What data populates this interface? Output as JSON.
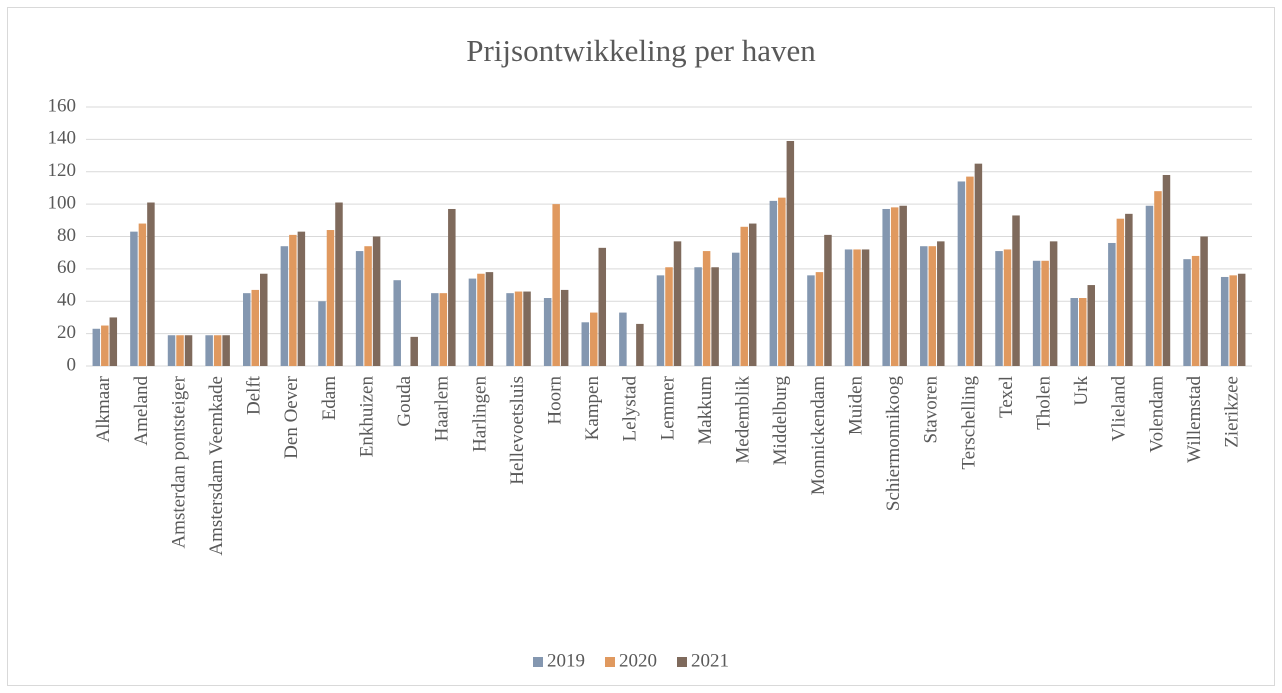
{
  "chart_data": {
    "type": "bar",
    "title": "Prijsontwikkeling per haven",
    "categories": [
      "Alkmaar",
      "Ameland",
      "Amsterdan pontsteiger",
      "Amstersdam Veemkade",
      "Delft",
      "Den Oever",
      "Edam",
      "Enkhuizen",
      "Gouda",
      "Haarlem",
      "Harlingen",
      "Hellevoetsluis",
      "Hoorn",
      "Kampen",
      "Lelystad",
      "Lemmer",
      "Makkum",
      "Medemblik",
      "Middelburg",
      "Monnickendam",
      "Muiden",
      "Schiermonnikoog",
      "Stavoren",
      "Terschelling",
      "Texel",
      "Tholen",
      "Urk",
      "Vlieland",
      "Volendam",
      "Willemstad",
      "Zierikzee"
    ],
    "series": [
      {
        "name": "2019",
        "color": "#8497b0",
        "values": [
          23,
          83,
          19,
          19,
          45,
          74,
          40,
          71,
          53,
          45,
          54,
          45,
          42,
          27,
          33,
          56,
          61,
          70,
          102,
          56,
          72,
          97,
          74,
          114,
          71,
          65,
          42,
          76,
          99,
          66,
          55
        ]
      },
      {
        "name": "2020",
        "color": "#e0995f",
        "values": [
          25,
          88,
          19,
          19,
          47,
          81,
          84,
          74,
          null,
          45,
          57,
          46,
          100,
          33,
          null,
          61,
          71,
          86,
          104,
          58,
          72,
          98,
          74,
          117,
          72,
          65,
          42,
          91,
          108,
          68,
          56
        ]
      },
      {
        "name": "2021",
        "color": "#7f6a5c",
        "values": [
          30,
          101,
          19,
          19,
          57,
          83,
          101,
          80,
          18,
          97,
          58,
          46,
          47,
          73,
          26,
          77,
          61,
          88,
          139,
          81,
          72,
          99,
          77,
          125,
          93,
          77,
          50,
          94,
          118,
          80,
          57
        ]
      }
    ],
    "ylim": [
      0,
      160
    ],
    "yticks": [
      0,
      20,
      40,
      60,
      80,
      100,
      120,
      140,
      160
    ],
    "grid": true,
    "legend": "bottom"
  }
}
